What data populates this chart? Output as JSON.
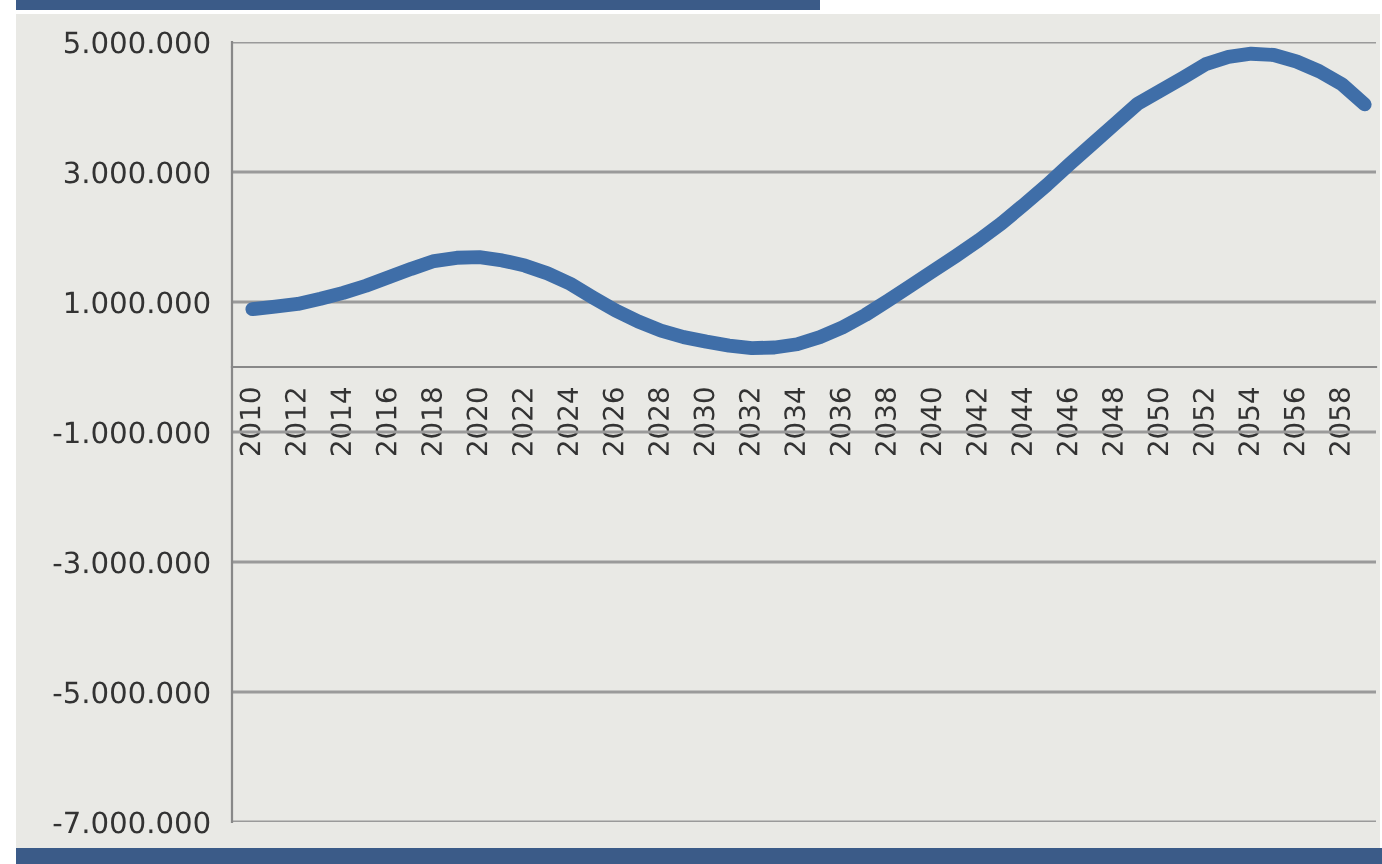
{
  "chart_data": {
    "type": "line",
    "categories": [
      "2010",
      null,
      "2012",
      null,
      "2014",
      null,
      "2016",
      null,
      "2018",
      null,
      "2020",
      null,
      "2022",
      null,
      "2024",
      null,
      "2026",
      null,
      "2028",
      null,
      "2030",
      null,
      "2032",
      null,
      "2034",
      null,
      "2036",
      null,
      "2038",
      null,
      "2040",
      null,
      "2042",
      null,
      "2044",
      null,
      "2046",
      null,
      "2048",
      null,
      "2050",
      null,
      "2052",
      null,
      "2054",
      null,
      "2056",
      null,
      "2058",
      null
    ],
    "series": [
      {
        "color": "#3f6ea8",
        "values": [
          890000,
          930000,
          970000,
          1050000,
          1140000,
          1250000,
          1380000,
          1510000,
          1630000,
          1680000,
          1690000,
          1640000,
          1560000,
          1440000,
          1280000,
          1070000,
          870000,
          700000,
          560000,
          460000,
          390000,
          330000,
          290000,
          300000,
          350000,
          460000,
          610000,
          800000,
          1020000,
          1250000,
          1480000,
          1710000,
          1950000,
          2210000,
          2500000,
          2800000,
          3120000,
          3430000,
          3740000,
          4050000,
          4250000,
          4450000,
          4660000,
          4770000,
          4820000,
          4800000,
          4700000,
          4550000,
          4350000,
          4040000
        ]
      }
    ],
    "ylim": [
      -7000000,
      5000000
    ],
    "yticks": [
      {
        "value": -7000000,
        "label": "-7.000.000"
      },
      {
        "value": -5000000,
        "label": "-5.000.000"
      },
      {
        "value": -3000000,
        "label": "-3.000.000"
      },
      {
        "value": -1000000,
        "label": "-1.000.000"
      },
      {
        "value": 1000000,
        "label": "1.000.000"
      },
      {
        "value": 3000000,
        "label": "3.000.000"
      },
      {
        "value": 5000000,
        "label": "5.000.000"
      }
    ],
    "grid": "y",
    "legend": false,
    "marker": "none",
    "line_style": "solid"
  }
}
